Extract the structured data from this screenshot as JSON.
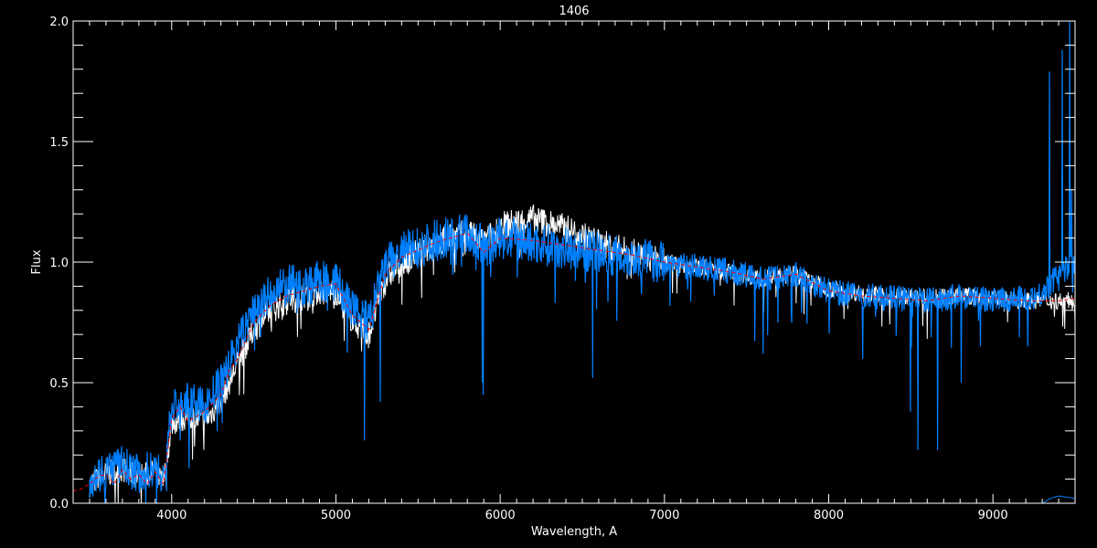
{
  "chart_data": {
    "type": "line",
    "title": "1406",
    "xlabel": "Wavelength, A",
    "ylabel": "Flux",
    "xlim": [
      3400,
      9500
    ],
    "ylim": [
      0.0,
      2.0
    ],
    "xticks": [
      4000,
      5000,
      6000,
      7000,
      8000,
      9000
    ],
    "xtick_labels": [
      "4000",
      "5000",
      "6000",
      "7000",
      "8000",
      "9000"
    ],
    "yticks": [
      0.0,
      0.5,
      1.0,
      1.5,
      2.0
    ],
    "ytick_labels": [
      "0.0",
      "0.5",
      "1.0",
      "1.5",
      "2.0"
    ],
    "grid": false,
    "background": "#000000",
    "series": [
      {
        "style": "solid",
        "color": "#ffffff",
        "x": [
          3500,
          3600,
          3700,
          3800,
          3900,
          3950,
          4000,
          4100,
          4200,
          4300,
          4350,
          4400,
          4500,
          4600,
          4700,
          4800,
          4900,
          5000,
          5100,
          5200,
          5300,
          5400,
          5500,
          5600,
          5700,
          5800,
          5900,
          6000,
          6200,
          6400,
          6600,
          6800,
          7000,
          7200,
          7400,
          7600,
          7800,
          8000,
          8200,
          8400,
          8600,
          8800,
          9000,
          9200,
          9400,
          9500
        ],
        "y": [
          0.08,
          0.12,
          0.14,
          0.11,
          0.13,
          0.08,
          0.33,
          0.36,
          0.34,
          0.42,
          0.5,
          0.58,
          0.72,
          0.8,
          0.84,
          0.86,
          0.88,
          0.88,
          0.76,
          0.7,
          0.93,
          1.0,
          1.04,
          1.08,
          1.1,
          1.12,
          1.08,
          1.15,
          1.18,
          1.14,
          1.08,
          1.04,
          1.0,
          0.98,
          0.96,
          0.93,
          0.95,
          0.89,
          0.87,
          0.86,
          0.85,
          0.86,
          0.85,
          0.84,
          0.84,
          0.84
        ]
      },
      {
        "style": "solid",
        "color": "#0080ff",
        "x": [
          3500,
          3600,
          3700,
          3800,
          3900,
          3950,
          4000,
          4100,
          4200,
          4300,
          4350,
          4400,
          4500,
          4600,
          4700,
          4800,
          4900,
          5000,
          5100,
          5200,
          5300,
          5400,
          5500,
          5600,
          5700,
          5800,
          5900,
          6000,
          6200,
          6400,
          6600,
          6800,
          7000,
          7200,
          7400,
          7600,
          7800,
          8000,
          8200,
          8400,
          8600,
          8800,
          9000,
          9200,
          9300,
          9400,
          9500
        ],
        "y": [
          0.1,
          0.14,
          0.16,
          0.12,
          0.15,
          0.1,
          0.4,
          0.42,
          0.4,
          0.5,
          0.58,
          0.66,
          0.8,
          0.86,
          0.9,
          0.9,
          0.92,
          0.92,
          0.8,
          0.75,
          0.98,
          1.04,
          1.06,
          1.09,
          1.11,
          1.12,
          1.06,
          1.1,
          1.08,
          1.06,
          1.04,
          1.02,
          1.0,
          0.98,
          0.96,
          0.93,
          0.95,
          0.88,
          0.86,
          0.85,
          0.84,
          0.86,
          0.84,
          0.85,
          0.87,
          0.95,
          1.0
        ],
        "absorption_lines": [
          {
            "x": 3934,
            "y": 0.05
          },
          {
            "x": 3969,
            "y": 0.05
          },
          {
            "x": 5175,
            "y": 0.26
          },
          {
            "x": 5270,
            "y": 0.42
          },
          {
            "x": 5890,
            "y": 0.5
          },
          {
            "x": 5896,
            "y": 0.45
          },
          {
            "x": 6563,
            "y": 0.52
          },
          {
            "x": 7600,
            "y": 0.62
          },
          {
            "x": 8498,
            "y": 0.38
          },
          {
            "x": 8542,
            "y": 0.22
          },
          {
            "x": 8662,
            "y": 0.22
          },
          {
            "x": 8806,
            "y": 0.5
          }
        ],
        "emission_spikes": [
          {
            "x": 9345,
            "y": 1.79
          },
          {
            "x": 9423,
            "y": 1.88
          },
          {
            "x": 9468,
            "y": 2.0
          },
          {
            "x": 9480,
            "y": 1.3
          }
        ]
      },
      {
        "style": "dashed",
        "color": "#ff0000",
        "x": [
          3400,
          3450,
          3500,
          3550,
          3600,
          3650,
          3700,
          3750,
          3800,
          3850,
          3900,
          3950,
          4000,
          4050,
          4100,
          4200,
          4300,
          4350,
          4400,
          4500,
          4600,
          4700,
          4800,
          4900,
          5000,
          5100,
          5200,
          5300,
          5400,
          5500,
          5600,
          5700,
          5800,
          5900,
          6000,
          6200,
          6400,
          6600,
          6800,
          7000,
          7200,
          7400,
          7600,
          7800,
          8000,
          8200,
          8400,
          8600,
          8800,
          9000,
          9200,
          9400,
          9500
        ],
        "y": [
          0.05,
          0.06,
          0.08,
          0.11,
          0.12,
          0.08,
          0.14,
          0.1,
          0.12,
          0.08,
          0.13,
          0.08,
          0.35,
          0.4,
          0.34,
          0.38,
          0.45,
          0.55,
          0.6,
          0.75,
          0.82,
          0.86,
          0.88,
          0.9,
          0.91,
          0.78,
          0.72,
          0.95,
          1.02,
          1.05,
          1.08,
          1.1,
          1.12,
          1.04,
          1.1,
          1.09,
          1.07,
          1.05,
          1.03,
          1.0,
          0.98,
          0.96,
          0.93,
          0.95,
          0.88,
          0.86,
          0.85,
          0.84,
          0.86,
          0.85,
          0.84,
          0.84,
          0.85
        ]
      },
      {
        "style": "solid",
        "color": "#0080ff",
        "x": [
          3500,
          9300,
          9350,
          9400,
          9500
        ],
        "y": [
          0.0,
          0.0,
          0.02,
          0.03,
          0.02
        ]
      }
    ]
  }
}
